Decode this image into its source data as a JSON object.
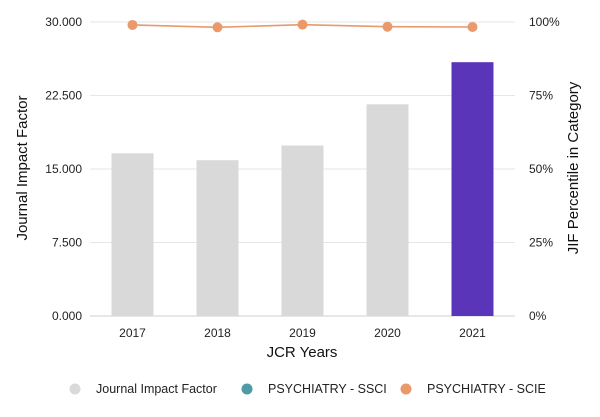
{
  "chart_data": {
    "type": "bar",
    "categories": [
      "2017",
      "2018",
      "2019",
      "2020",
      "2021"
    ],
    "bars": {
      "name": "Journal Impact Factor",
      "values": [
        16.6,
        15.9,
        17.4,
        21.6,
        25.9
      ],
      "colors": [
        "#d9d9d9",
        "#d9d9d9",
        "#d9d9d9",
        "#d9d9d9",
        "#5b35b9"
      ]
    },
    "line_series": [
      {
        "name": "PSYCHIATRY - SSCI",
        "color": "#4e9aa9",
        "values": []
      },
      {
        "name": "PSYCHIATRY - SCIE",
        "color": "#e9996a",
        "values": [
          99.0,
          98.2,
          99.1,
          98.4,
          98.3
        ]
      }
    ],
    "xlabel": "JCR Years",
    "ylabel_left": "Journal Impact Factor",
    "ylabel_right": "JIF Percentile in Category",
    "ylim_left": [
      0,
      30
    ],
    "ylim_right": [
      0,
      100
    ],
    "yticks_left": [
      "0.000",
      "7.500",
      "15.000",
      "22.500",
      "30.000"
    ],
    "yticks_right": [
      "0%",
      "25%",
      "50%",
      "75%",
      "100%"
    ],
    "grid": true,
    "legend_position": "bottom",
    "legend": [
      {
        "label": "Journal Impact Factor",
        "color": "#d9d9d9"
      },
      {
        "label": "PSYCHIATRY - SSCI",
        "color": "#4e9aa9"
      },
      {
        "label": "PSYCHIATRY - SCIE",
        "color": "#e9996a"
      }
    ]
  }
}
